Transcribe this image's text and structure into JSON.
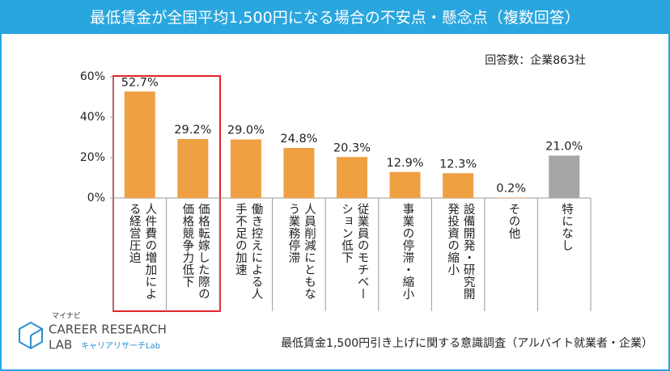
{
  "chart_data": {
    "type": "bar",
    "title": "最低賃金が全国平均1,500円になる場合の不安点・懸念点（複数回答）",
    "subtitle": "回答数：企業863社",
    "note": "最低賃金1,500円引き上げに関する意識調査（アルバイト就業者・企業）",
    "categories": [
      "人件費の増加による経営圧迫",
      "価格転嫁した際の価格競争力低下",
      "働き控えによる人手不足の加速",
      "人員削減にともなう業務停滞",
      "従業員のモチベーション低下",
      "事業の停滞・縮小",
      "設備開発・研究開発投資の縮小",
      "その他",
      "特になし"
    ],
    "values": [
      52.7,
      29.2,
      29.0,
      24.8,
      20.3,
      12.9,
      12.3,
      0.2,
      21.0
    ],
    "value_labels": [
      "52.7%",
      "29.2%",
      "29.0%",
      "24.8%",
      "20.3%",
      "12.9%",
      "12.3%",
      "0.2%",
      "21.0%"
    ],
    "colors": [
      "#efa043",
      "#efa043",
      "#efa043",
      "#efa043",
      "#efa043",
      "#efa043",
      "#efa043",
      "#efa043",
      "#a6a6a6"
    ],
    "ylim": [
      0,
      60
    ],
    "yticks": [
      {
        "value": 0,
        "label": "0%"
      },
      {
        "value": 20,
        "label": "20%"
      },
      {
        "value": 40,
        "label": "40%"
      },
      {
        "value": 60,
        "label": "60%"
      }
    ],
    "logo": {
      "brand": "マイナビ",
      "line1": "CAREER RESEARCH",
      "line2": "LAB",
      "sub": "キャリアリサーチLab"
    }
  }
}
